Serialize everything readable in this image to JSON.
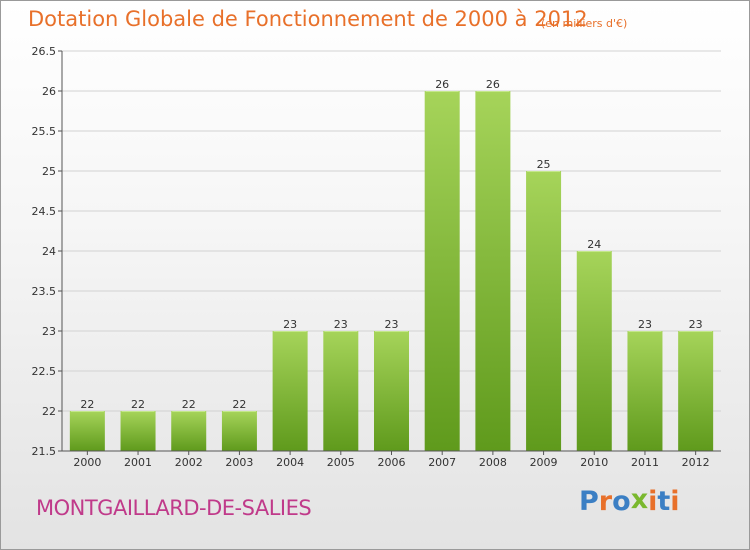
{
  "header": {
    "title": "Dotation Globale de Fonctionnement de 2000 à 2012",
    "subtitle": "(en milliers d'€)"
  },
  "footer": {
    "commune": "MONTGAILLARD-DE-SALIES",
    "brand_letters": [
      "P",
      "r",
      "o",
      "x",
      "i",
      "t",
      "i"
    ]
  },
  "colors": {
    "title": "#e8702a",
    "commune": "#c03a8a",
    "bar_top": "#a6d45a",
    "bar_bottom": "#5f9a1c",
    "grid": "#d2d2d2",
    "axis": "#555555",
    "brand": [
      "#3b7fc4",
      "#e8702a",
      "#3b7fc4",
      "#7ab82e",
      "#e8702a",
      "#3b7fc4",
      "#e8702a"
    ]
  },
  "chart_data": {
    "type": "bar",
    "categories": [
      "2000",
      "2001",
      "2002",
      "2003",
      "2004",
      "2005",
      "2006",
      "2007",
      "2008",
      "2009",
      "2010",
      "2011",
      "2012"
    ],
    "values": [
      22,
      22,
      22,
      22,
      23,
      23,
      23,
      26,
      26,
      25,
      24,
      23,
      23
    ],
    "data_labels": [
      "22",
      "22",
      "22",
      "22",
      "23",
      "23",
      "23",
      "26",
      "26",
      "25",
      "24",
      "23",
      "23"
    ],
    "yticks": [
      21.5,
      22,
      22.5,
      23,
      23.5,
      24,
      24.5,
      25,
      25.5,
      26,
      26.5
    ],
    "ytick_labels": [
      "21.5",
      "22",
      "22.5",
      "23",
      "23.5",
      "24",
      "24.5",
      "25",
      "25.5",
      "26",
      "26.5"
    ],
    "ylim": [
      21.5,
      26.5
    ],
    "grid": true,
    "legend": "none",
    "xlabel": "",
    "ylabel": ""
  }
}
